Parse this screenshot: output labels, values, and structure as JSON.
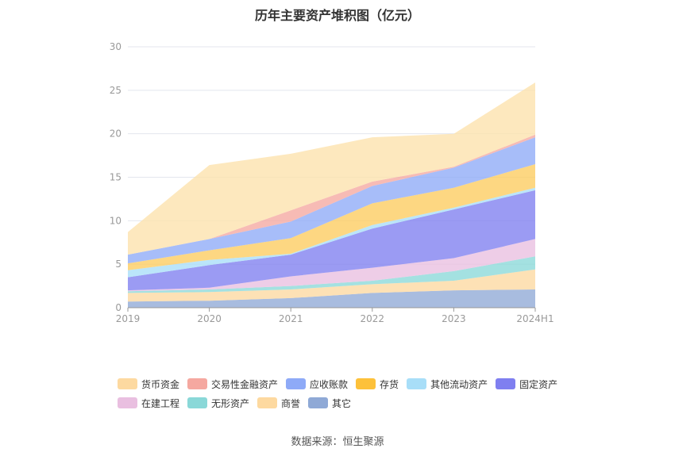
{
  "title": "历年主要资产堆积图（亿元）",
  "source_label": "数据来源：恒生聚源",
  "chart_data": {
    "type": "area",
    "stacked": true,
    "categories": [
      "2019",
      "2020",
      "2021",
      "2022",
      "2023",
      "2024H1"
    ],
    "ylim": [
      0,
      30
    ],
    "yticks": [
      0,
      5,
      10,
      15,
      20,
      25,
      30
    ],
    "grid": true,
    "legend_position": "bottom",
    "series": [
      {
        "name": "其它",
        "color": "#8fa9d6",
        "values": [
          0.7,
          0.8,
          1.1,
          1.7,
          2.0,
          2.1
        ]
      },
      {
        "name": "商誉",
        "color": "#fdd9a0",
        "values": [
          1.0,
          1.0,
          1.0,
          1.0,
          1.1,
          2.3
        ]
      },
      {
        "name": "无形资产",
        "color": "#8ad8d8",
        "values": [
          0.2,
          0.3,
          0.4,
          0.4,
          1.1,
          1.5
        ]
      },
      {
        "name": "在建工程",
        "color": "#e9bfe0",
        "values": [
          0.1,
          0.2,
          1.1,
          1.5,
          1.5,
          2.0
        ]
      },
      {
        "name": "固定资产",
        "color": "#7f7ff0",
        "values": [
          1.5,
          2.6,
          2.5,
          4.5,
          5.6,
          5.6
        ]
      },
      {
        "name": "其他流动资产",
        "color": "#a8def8",
        "values": [
          0.8,
          0.6,
          0.1,
          0.4,
          0.2,
          0.3
        ]
      },
      {
        "name": "存货",
        "color": "#fdcc5f",
        "values": [
          0.8,
          1.1,
          1.8,
          2.5,
          2.3,
          2.7
        ]
      },
      {
        "name": "应收账款",
        "color": "#8eaaf7",
        "values": [
          1.0,
          1.3,
          1.9,
          2.0,
          2.3,
          3.1
        ]
      },
      {
        "name": "交易性金融资产",
        "color": "#f5a8a0",
        "values": [
          0.0,
          0.0,
          1.3,
          0.5,
          0.1,
          0.3
        ]
      },
      {
        "name": "货币资金",
        "color": "#fde1ac",
        "values": [
          2.6,
          8.5,
          6.5,
          5.1,
          3.8,
          6.0
        ]
      }
    ]
  },
  "legend": {
    "row1": [
      {
        "label": "货币资金",
        "color": "#fdd9a0"
      },
      {
        "label": "交易性金融资产",
        "color": "#f5a8a0"
      },
      {
        "label": "应收账款",
        "color": "#8eaaf7"
      },
      {
        "label": "存货",
        "color": "#fdc13a"
      },
      {
        "label": "其他流动资产",
        "color": "#a8def8"
      },
      {
        "label": "固定资产",
        "color": "#7f7ff0"
      }
    ],
    "row2": [
      {
        "label": "在建工程",
        "color": "#e9bfe0"
      },
      {
        "label": "无形资产",
        "color": "#8ad8d8"
      },
      {
        "label": "商誉",
        "color": "#fdd9a0"
      },
      {
        "label": "其它",
        "color": "#8fa9d6"
      }
    ]
  }
}
